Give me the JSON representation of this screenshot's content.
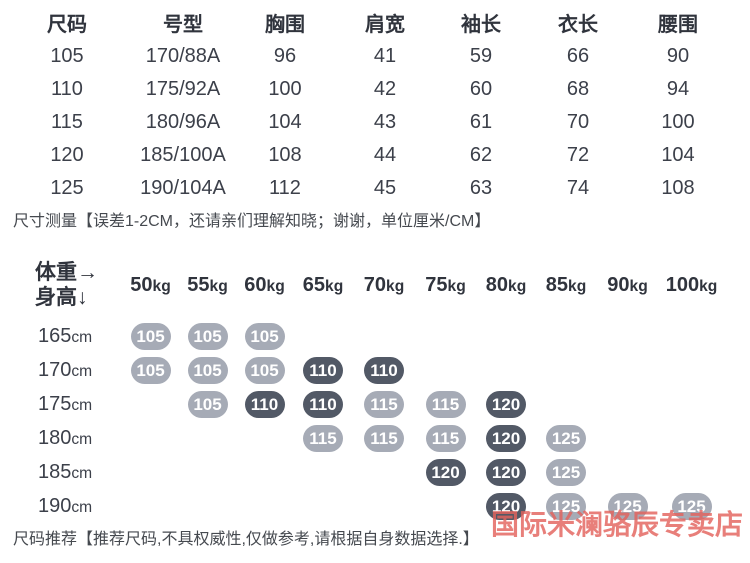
{
  "size_table": {
    "headers": [
      "尺码",
      "号型",
      "胸围",
      "肩宽",
      "袖长",
      "衣长",
      "腰围"
    ],
    "rows": [
      [
        "105",
        "170/88A",
        "96",
        "41",
        "59",
        "66",
        "90"
      ],
      [
        "110",
        "175/92A",
        "100",
        "42",
        "60",
        "68",
        "94"
      ],
      [
        "115",
        "180/96A",
        "104",
        "43",
        "61",
        "70",
        "100"
      ],
      [
        "120",
        "185/100A",
        "108",
        "44",
        "62",
        "72",
        "104"
      ],
      [
        "125",
        "190/104A",
        "112",
        "45",
        "63",
        "74",
        "108"
      ]
    ],
    "note": "尺寸测量【误差1-2CM，还请亲们理解知晓；谢谢，单位厘米/CM】"
  },
  "recommendation_matrix": {
    "corner": {
      "weight_label": "体重→",
      "height_label": "身高↓"
    },
    "weights": [
      "50kg",
      "55kg",
      "60kg",
      "65kg",
      "70kg",
      "75kg",
      "80kg",
      "85kg",
      "90kg",
      "100kg"
    ],
    "rows": [
      {
        "height": "165cm",
        "cells": [
          {
            "v": "105",
            "tone": "light"
          },
          {
            "v": "105",
            "tone": "light"
          },
          {
            "v": "105",
            "tone": "light"
          },
          null,
          null,
          null,
          null,
          null,
          null,
          null
        ]
      },
      {
        "height": "170cm",
        "cells": [
          {
            "v": "105",
            "tone": "light"
          },
          {
            "v": "105",
            "tone": "light"
          },
          {
            "v": "105",
            "tone": "light"
          },
          {
            "v": "110",
            "tone": "dark"
          },
          {
            "v": "110",
            "tone": "dark"
          },
          null,
          null,
          null,
          null,
          null
        ]
      },
      {
        "height": "175cm",
        "cells": [
          null,
          {
            "v": "105",
            "tone": "light"
          },
          {
            "v": "110",
            "tone": "dark"
          },
          {
            "v": "110",
            "tone": "dark"
          },
          {
            "v": "115",
            "tone": "light"
          },
          {
            "v": "115",
            "tone": "light"
          },
          {
            "v": "120",
            "tone": "dark"
          },
          null,
          null,
          null
        ]
      },
      {
        "height": "180cm",
        "cells": [
          null,
          null,
          null,
          {
            "v": "115",
            "tone": "light"
          },
          {
            "v": "115",
            "tone": "light"
          },
          {
            "v": "115",
            "tone": "light"
          },
          {
            "v": "120",
            "tone": "dark"
          },
          {
            "v": "125",
            "tone": "light"
          },
          null,
          null
        ]
      },
      {
        "height": "185cm",
        "cells": [
          null,
          null,
          null,
          null,
          null,
          {
            "v": "120",
            "tone": "dark"
          },
          {
            "v": "120",
            "tone": "dark"
          },
          {
            "v": "125",
            "tone": "light"
          },
          null,
          null
        ]
      },
      {
        "height": "190cm",
        "cells": [
          null,
          null,
          null,
          null,
          null,
          null,
          {
            "v": "120",
            "tone": "dark"
          },
          {
            "v": "125",
            "tone": "light"
          },
          {
            "v": "125",
            "tone": "light"
          },
          {
            "v": "125",
            "tone": "light"
          }
        ]
      }
    ],
    "badge_colors": {
      "light": "#a6abb6",
      "dark": "#525966",
      "text": "#ffffff"
    },
    "note": "尺码推荐【推荐尺码,不具权威性,仅做参考,请根据自身数据选择.】"
  },
  "watermark": {
    "text": "国际米澜骆辰专卖店",
    "color": "#e4635d"
  }
}
